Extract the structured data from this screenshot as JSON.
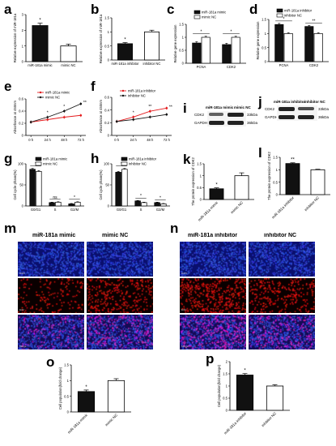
{
  "panels": {
    "a": {
      "label": "a",
      "ylabel": "Relative expression of miR-181a",
      "categories": [
        "miR-181a mimic",
        "mimic NC"
      ],
      "sig": "*"
    },
    "b": {
      "label": "b",
      "ylabel": "Relative expression of miR-181a",
      "categories": [
        "miR-181a inhibitor",
        "inhibitor NC"
      ],
      "sig": "*"
    },
    "c": {
      "label": "c",
      "ylabel": "Relative gene expression",
      "categories": [
        "PCNA",
        "CDK2"
      ],
      "legend": [
        "miR-181a mimic",
        "mimic NC"
      ],
      "sig": [
        "*",
        "*"
      ]
    },
    "d": {
      "label": "d",
      "ylabel": "Relative gene expression",
      "categories": [
        "PCNA",
        "CDK2"
      ],
      "legend": [
        "miR-181a inhibitor",
        "inhibitor NC"
      ],
      "sig": [
        "*",
        "**"
      ]
    },
    "e": {
      "label": "e",
      "ylabel": "Absorbance at 450nm",
      "x_ticks": [
        "0 h",
        "24 h",
        "48 h",
        "72 h"
      ],
      "legend": [
        "miR-181a mimic",
        "mimic NC"
      ],
      "sig": [
        "*",
        "*",
        "**"
      ]
    },
    "f": {
      "label": "f",
      "ylabel": "Absorbance at 450nm",
      "x_ticks": [
        "0 h",
        "24 h",
        "48 h",
        "72 h"
      ],
      "legend": [
        "miR-181a inhibitor",
        "inhibitor NC"
      ],
      "sig": [
        "*",
        "**",
        "**"
      ]
    },
    "g": {
      "label": "g",
      "ylabel": "Cell cycle phase(%)",
      "categories": [
        "G0/G1",
        "S",
        "G2/M"
      ],
      "legend": [
        "miR-181a mimic",
        "mimic NC"
      ],
      "sig": [
        "*",
        "ns",
        "*"
      ]
    },
    "h": {
      "label": "h",
      "ylabel": "Cell cycle phase(%)",
      "categories": [
        "G0/G1",
        "S",
        "G2/M"
      ],
      "legend": [
        "miR-181a inhibitor",
        "inhibitor NC"
      ],
      "sig": [
        "*",
        "*",
        "*"
      ]
    },
    "i": {
      "label": "i",
      "lanes": [
        "miR-181a mimic",
        "mimic NC"
      ],
      "rows": [
        "CDK2",
        "GAPDH"
      ],
      "sizes": [
        "33kDa",
        "36kDa"
      ]
    },
    "j": {
      "label": "j",
      "lanes": [
        "miR-181a inhibitor",
        "inhibitor NC"
      ],
      "rows": [
        "CDK2",
        "GAPDH"
      ],
      "sizes": [
        "33kDa",
        "36kDa"
      ]
    },
    "k": {
      "label": "k",
      "ylabel": "The protein expression of CDK2",
      "categories": [
        "miR-181a mimic",
        "mimic NC"
      ],
      "sig": "*"
    },
    "l": {
      "label": "l",
      "ylabel": "The protein expression of CDK2",
      "categories": [
        "miR-181a inhibitor",
        "inhibitor NC"
      ],
      "sig": "**"
    },
    "m": {
      "label": "m",
      "columns": [
        "miR-181a mimic",
        "mimic NC"
      ],
      "rows": [
        "DAPI",
        "EdU",
        "Merge"
      ]
    },
    "n": {
      "label": "n",
      "columns": [
        "miR-181a inhibitor",
        "inhibitor NC"
      ],
      "rows": [
        "DAPI",
        "EdU",
        "Merge"
      ]
    },
    "o": {
      "label": "o",
      "ylabel": "Cell population(fold change)",
      "categories": [
        "miR-181a mimic",
        "mimic NC"
      ],
      "sig": "*"
    },
    "p": {
      "label": "p",
      "ylabel": "Cell population(fold change)",
      "categories": [
        "miR-181a inhibitor",
        "inhibitor NC"
      ],
      "sig": "*"
    }
  },
  "chart_data": [
    {
      "id": "a",
      "type": "bar",
      "categories": [
        "miR-181a mimic",
        "mimic NC"
      ],
      "values": [
        2.3,
        1.0
      ],
      "errors": [
        0.15,
        0.12
      ],
      "ylim": [
        0,
        3
      ],
      "yticks": [
        0,
        1,
        2,
        3
      ],
      "ylabel": "Relative expression of miR-181a",
      "fills": [
        "#111111",
        "#ffffff"
      ]
    },
    {
      "id": "b",
      "type": "bar",
      "categories": [
        "miR-181a inhibitor",
        "inhibitor NC"
      ],
      "values": [
        0.58,
        1.0
      ],
      "errors": [
        0.04,
        0.06
      ],
      "ylim": [
        0,
        1.5
      ],
      "yticks": [
        0,
        0.5,
        1.0,
        1.5
      ],
      "ylabel": "Relative expression of miR-181a",
      "fills": [
        "#111111",
        "#ffffff"
      ]
    },
    {
      "id": "c",
      "type": "bar",
      "categories": [
        "PCNA",
        "CDK2"
      ],
      "series": [
        {
          "name": "miR-181a mimic",
          "values": [
            0.78,
            0.72
          ],
          "errors": [
            0.05,
            0.05
          ]
        },
        {
          "name": "mimic NC",
          "values": [
            1.0,
            1.0
          ],
          "errors": [
            0.04,
            0.04
          ]
        }
      ],
      "ylim": [
        0,
        1.5
      ],
      "yticks": [
        0,
        0.5,
        1.0,
        1.5
      ],
      "ylabel": "Relative gene expression"
    },
    {
      "id": "d",
      "type": "bar",
      "categories": [
        "PCNA",
        "CDK2"
      ],
      "series": [
        {
          "name": "miR-181a inhibitor",
          "values": [
            1.32,
            1.25
          ],
          "errors": [
            0.04,
            0.04
          ]
        },
        {
          "name": "inhibitor NC",
          "values": [
            1.0,
            1.0
          ],
          "errors": [
            0.03,
            0.03
          ]
        }
      ],
      "ylim": [
        0,
        1.5
      ],
      "yticks": [
        0,
        0.5,
        1.0,
        1.5
      ],
      "ylabel": "Relative gene expression"
    },
    {
      "id": "e",
      "type": "line",
      "x": [
        "0 h",
        "24 h",
        "48 h",
        "72 h"
      ],
      "series": [
        {
          "name": "miR-181a mimic",
          "values": [
            0.22,
            0.26,
            0.3,
            0.33
          ],
          "color": "#e41a1c"
        },
        {
          "name": "mimic NC",
          "values": [
            0.22,
            0.3,
            0.4,
            0.52
          ],
          "color": "#111111"
        }
      ],
      "ylim": [
        0,
        0.6
      ],
      "yticks": [
        0,
        0.2,
        0.4,
        0.6
      ],
      "ylabel": "Absorbance at 450nm"
    },
    {
      "id": "f",
      "type": "line",
      "x": [
        "0 h",
        "24 h",
        "48 h",
        "72 h"
      ],
      "series": [
        {
          "name": "miR-181a inhibitor",
          "values": [
            0.22,
            0.29,
            0.38,
            0.43
          ],
          "color": "#e41a1c"
        },
        {
          "name": "inhibitor NC",
          "values": [
            0.22,
            0.25,
            0.29,
            0.33
          ],
          "color": "#111111"
        }
      ],
      "ylim": [
        0,
        0.6
      ],
      "yticks": [
        0,
        0.2,
        0.4,
        0.6
      ],
      "ylabel": "Absorbance at 450nm"
    },
    {
      "id": "g",
      "type": "bar",
      "categories": [
        "G0/G1",
        "S",
        "G2/M"
      ],
      "series": [
        {
          "name": "miR-181a mimic",
          "values": [
            87,
            8,
            5
          ],
          "errors": [
            2,
            1,
            1
          ]
        },
        {
          "name": "mimic NC",
          "values": [
            82,
            9,
            9
          ],
          "errors": [
            2,
            1,
            1
          ]
        }
      ],
      "ylim": [
        0,
        100
      ],
      "yticks": [
        0,
        50,
        100
      ],
      "ylabel": "Cell cycle phase(%)"
    },
    {
      "id": "h",
      "type": "bar",
      "categories": [
        "G0/G1",
        "S",
        "G2/M"
      ],
      "series": [
        {
          "name": "miR-181a inhibitor",
          "values": [
            80,
            12,
            8
          ],
          "errors": [
            2,
            1,
            1
          ]
        },
        {
          "name": "inhibitor NC",
          "values": [
            87,
            8,
            5
          ],
          "errors": [
            2,
            1,
            1
          ]
        }
      ],
      "ylim": [
        0,
        100
      ],
      "yticks": [
        0,
        50,
        100
      ],
      "ylabel": "Cell cycle phase(%)"
    },
    {
      "id": "k",
      "type": "bar",
      "categories": [
        "miR-181a mimic",
        "mimic NC"
      ],
      "values": [
        0.45,
        1.0
      ],
      "errors": [
        0.04,
        0.12
      ],
      "ylim": [
        0,
        1.5
      ],
      "yticks": [
        0,
        0.5,
        1.0,
        1.5
      ],
      "ylabel": "The protein expression of CDK2",
      "fills": [
        "#111111",
        "#ffffff"
      ]
    },
    {
      "id": "l",
      "type": "bar",
      "categories": [
        "miR-181a inhibitor",
        "inhibitor NC"
      ],
      "values": [
        1.25,
        1.0
      ],
      "errors": [
        0.03,
        0.02
      ],
      "ylim": [
        0,
        1.5
      ],
      "yticks": [
        0,
        0.5,
        1.0,
        1.5
      ],
      "ylabel": "The protein expression of CDK2",
      "fills": [
        "#111111",
        "#ffffff"
      ]
    },
    {
      "id": "o",
      "type": "bar",
      "categories": [
        "miR-181a mimic",
        "mimic NC"
      ],
      "values": [
        0.65,
        1.0
      ],
      "errors": [
        0.05,
        0.06
      ],
      "ylim": [
        0,
        1.5
      ],
      "yticks": [
        0,
        0.5,
        1.0,
        1.5
      ],
      "ylabel": "Cell population(fold change)",
      "fills": [
        "#111111",
        "#ffffff"
      ]
    },
    {
      "id": "p",
      "type": "bar",
      "categories": [
        "miR-181a inhibitor",
        "inhibitor NC"
      ],
      "values": [
        1.45,
        1.0
      ],
      "errors": [
        0.06,
        0.05
      ],
      "ylim": [
        0,
        2.0
      ],
      "yticks": [
        0,
        0.5,
        1.0,
        1.5,
        2.0
      ],
      "ylabel": "Cell population(fold change)",
      "fills": [
        "#111111",
        "#ffffff"
      ]
    }
  ],
  "colors": {
    "dapi": "#1a2fd6",
    "edu": "#e0190f",
    "merge": "#6a1fb0",
    "bar_dark": "#111111",
    "bar_light": "#ffffff",
    "line_red": "#e41a1c"
  }
}
